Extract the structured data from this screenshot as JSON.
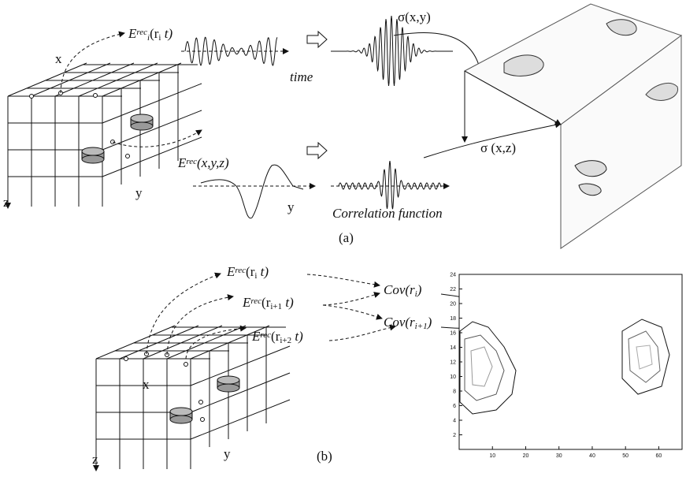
{
  "panel_a": {
    "label": "(a)",
    "x_axis": "x",
    "y_axis": "y",
    "z_axis": "z",
    "signal_time": {
      "symbol": "E",
      "sup": "rec",
      "sub": "i",
      "arg_open": "(r",
      "arg_sub": "i",
      "arg_close": " t)"
    },
    "time_label": "time",
    "signal_space": {
      "symbol": "E",
      "sup": "rec",
      "args": "(x,y,z)"
    },
    "space_axis": "y",
    "correlation_label": "Correlation function",
    "sigma_xy": "σ(x,y)",
    "sigma_xz": "σ (x,z)"
  },
  "panel_b": {
    "label": "(b)",
    "x_axis": "x",
    "y_axis": "y",
    "z_axis": "z",
    "signals": [
      {
        "symbol": "E",
        "sup": "rec",
        "arg_open": "(r",
        "arg_sub": "i",
        "arg_close": " t)"
      },
      {
        "symbol": "E",
        "sup": "rec",
        "arg_open": "(r",
        "arg_sub": "i+1",
        "arg_close": " t)"
      },
      {
        "symbol": "E",
        "sup": "rec",
        "arg_open": "(r",
        "arg_sub": "i+2",
        "arg_close": " t)"
      }
    ],
    "covariances": [
      {
        "symbol": "Cov",
        "arg_open": "(r",
        "arg_sub": "i",
        "arg_close": ")"
      },
      {
        "symbol": "Cov",
        "arg_open": "(r",
        "arg_sub": "i+1",
        "arg_close": ")"
      }
    ],
    "contour_plot": {
      "xlim": [
        0,
        67
      ],
      "ylim": [
        0,
        24
      ],
      "xticks": [
        10,
        20,
        30,
        40,
        50,
        60
      ],
      "yticks": [
        2,
        4,
        6,
        8,
        10,
        12,
        14,
        16,
        18,
        20,
        22,
        24
      ]
    }
  }
}
